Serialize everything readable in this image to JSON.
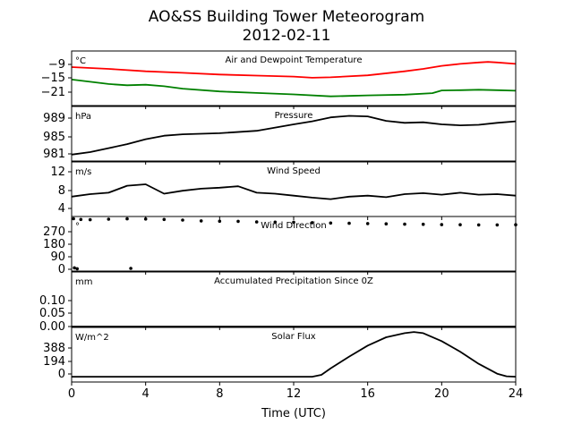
{
  "title": "AO&SS Building Tower Meteorogram",
  "subtitle": "2012-02-11",
  "xlabel": "Time (UTC)",
  "x_ticks": [
    "0",
    "4",
    "8",
    "12",
    "16",
    "20",
    "24"
  ],
  "colors": {
    "temperature": "#ff0000",
    "dewpoint": "#008000",
    "default": "#000000"
  },
  "chart_data": [
    {
      "type": "line",
      "title": "Air and Dewpoint Temperature",
      "unit": "°C",
      "y_ticks": [
        "−9",
        "−15",
        "−21"
      ],
      "ylim": [
        -26,
        -4
      ],
      "series": [
        {
          "name": "",
          "color": "#ff0000",
          "x": [
            0,
            2,
            4,
            6,
            8,
            10,
            12,
            13,
            14,
            16,
            18,
            19,
            20,
            21,
            22,
            22.5,
            23,
            24
          ],
          "y": [
            -10.5,
            -11.2,
            -12.2,
            -12.8,
            -13.5,
            -13.9,
            -14.3,
            -14.8,
            -14.6,
            -13.8,
            -12.2,
            -11.2,
            -10.0,
            -9.2,
            -8.6,
            -8.4,
            -8.6,
            -9.2
          ]
        },
        {
          "name": "",
          "color": "#008000",
          "x": [
            0,
            1,
            2,
            3,
            4,
            5,
            6,
            8,
            10,
            12,
            14,
            15,
            16,
            18,
            19.5,
            20,
            21,
            22,
            23,
            24
          ],
          "y": [
            -15.5,
            -16.4,
            -17.3,
            -17.8,
            -17.6,
            -18.2,
            -19.2,
            -20.3,
            -20.9,
            -21.5,
            -22.3,
            -22.1,
            -21.9,
            -21.6,
            -21.0,
            -19.9,
            -19.8,
            -19.6,
            -19.8,
            -20.0
          ]
        }
      ]
    },
    {
      "type": "line",
      "title": "Pressure",
      "unit": "hPa",
      "y_ticks": [
        "989",
        "985",
        "981"
      ],
      "ylim": [
        980,
        991
      ],
      "series": [
        {
          "name": "",
          "color": "#000000",
          "x": [
            0,
            1,
            2,
            3,
            4,
            5,
            6,
            8,
            10,
            12,
            13,
            14,
            15,
            16,
            17,
            18,
            19,
            20,
            21,
            22,
            23,
            24
          ],
          "y": [
            981.3,
            981.8,
            982.6,
            983.4,
            984.4,
            985.1,
            985.4,
            985.6,
            986.1,
            987.4,
            988.0,
            988.8,
            989.1,
            989.0,
            988.1,
            987.7,
            987.8,
            987.4,
            987.2,
            987.3,
            987.7,
            988.0
          ]
        }
      ]
    },
    {
      "type": "line",
      "title": "Wind Speed",
      "unit": "m/s",
      "y_ticks": [
        "12",
        "8",
        "4"
      ],
      "ylim": [
        3,
        14
      ],
      "series": [
        {
          "name": "",
          "color": "#000000",
          "x": [
            0,
            1,
            2,
            3,
            4,
            5,
            6,
            7,
            8,
            9,
            10,
            11,
            12,
            13,
            14,
            15,
            16,
            17,
            18,
            19,
            20,
            21,
            22,
            23,
            24
          ],
          "y": [
            7.0,
            7.5,
            7.8,
            9.2,
            9.5,
            7.6,
            8.2,
            8.6,
            8.8,
            9.1,
            7.8,
            7.6,
            7.2,
            6.8,
            6.5,
            7.0,
            7.2,
            6.9,
            7.5,
            7.7,
            7.4,
            7.8,
            7.4,
            7.5,
            7.2
          ]
        }
      ]
    },
    {
      "type": "scatter",
      "title": "Wind Direction",
      "unit": "°",
      "y_ticks": [
        "270",
        "180",
        "90",
        "0"
      ],
      "ylim": [
        -10,
        360
      ],
      "series": [
        {
          "name": "",
          "color": "#000000",
          "x": [
            0.1,
            0.5,
            1,
            2,
            3,
            4,
            5,
            6,
            7,
            8,
            9,
            10,
            11,
            12,
            13,
            14,
            15,
            16,
            17,
            18,
            19,
            20,
            21,
            22,
            23,
            24,
            0.15,
            0.3,
            3.2
          ],
          "y": [
            345,
            340,
            338,
            342,
            344,
            343,
            340,
            336,
            330,
            328,
            327,
            323,
            322,
            321,
            318,
            316,
            314,
            312,
            310,
            308,
            307,
            305,
            304,
            303,
            303,
            304,
            12,
            6,
            8
          ]
        }
      ]
    },
    {
      "type": "line",
      "title": "Accumulated Precipitation Since 0Z",
      "unit": "mm",
      "y_ticks": [
        "0.10",
        "0.05",
        "0.00"
      ],
      "ylim": [
        0,
        0.17
      ],
      "series": [
        {
          "name": "",
          "color": "#000000",
          "x": [
            0,
            24
          ],
          "y": [
            0,
            0
          ]
        }
      ]
    },
    {
      "type": "line",
      "title": "Solar Flux",
      "unit": "W/m^2",
      "y_ticks": [
        "388",
        "194",
        "0"
      ],
      "ylim": [
        -70,
        650
      ],
      "series": [
        {
          "name": "",
          "color": "#000000",
          "x": [
            0,
            13,
            13.5,
            14,
            15,
            16,
            17,
            18,
            18.5,
            19,
            20,
            21,
            22,
            23,
            23.5,
            24
          ],
          "y": [
            0,
            0,
            25,
            110,
            265,
            410,
            520,
            575,
            590,
            575,
            470,
            330,
            170,
            40,
            5,
            0
          ]
        }
      ]
    }
  ]
}
